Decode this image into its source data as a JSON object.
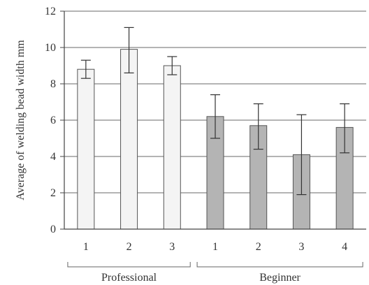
{
  "chart_data": {
    "type": "bar",
    "title": "",
    "xlabel": "",
    "ylabel": "Average of welding bead width mm",
    "ylim": [
      0,
      12
    ],
    "yticks": [
      0,
      2,
      4,
      6,
      8,
      10,
      12
    ],
    "grid": true,
    "categories": [
      "1",
      "2",
      "3",
      "1",
      "2",
      "3",
      "4"
    ],
    "groups": [
      {
        "label": "Professional",
        "members": [
          0,
          1,
          2
        ],
        "color": "#f4f4f4"
      },
      {
        "label": "Beginner",
        "members": [
          3,
          4,
          5,
          6
        ],
        "color": "#b4b4b4"
      }
    ],
    "values": [
      8.8,
      9.9,
      9.0,
      6.2,
      5.7,
      4.1,
      5.6
    ],
    "error": [
      [
        8.3,
        9.3
      ],
      [
        8.6,
        11.1
      ],
      [
        8.5,
        9.5
      ],
      [
        5.0,
        7.4
      ],
      [
        4.4,
        6.9
      ],
      [
        1.9,
        6.3
      ],
      [
        4.2,
        6.9
      ]
    ]
  }
}
